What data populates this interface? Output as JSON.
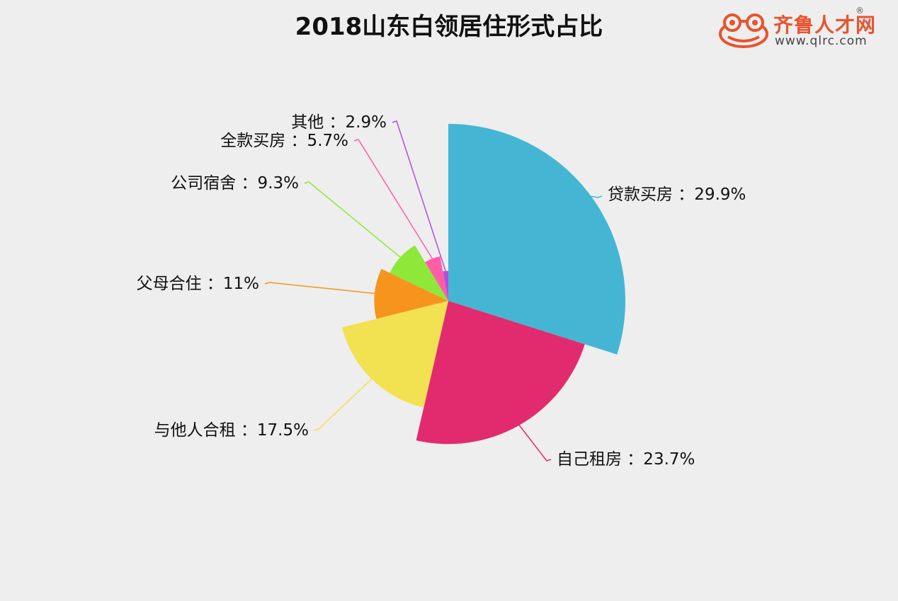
{
  "title": "2018山东白领居住形式占比",
  "logo": {
    "name": "齐鲁人才网",
    "url": "www.qlrc.com",
    "reg": "®",
    "icon": "frog-logo-icon"
  },
  "chart_data": {
    "type": "pie",
    "variant": "rose-by-radius",
    "start_angle_deg": 0,
    "direction": "clockwise-from-top",
    "slices": [
      {
        "label": "贷款买房",
        "value": 29.9,
        "display": "29.9%",
        "color": "#44b6d3"
      },
      {
        "label": "自己租房",
        "value": 23.7,
        "display": "23.7%",
        "color": "#e22b6e"
      },
      {
        "label": "与他人合租",
        "value": 17.5,
        "display": "17.5%",
        "color": "#f2e150"
      },
      {
        "label": "父母合住",
        "value": 11,
        "display": "11%",
        "color": "#f7941d"
      },
      {
        "label": "公司宿舍",
        "value": 9.3,
        "display": "9.3%",
        "color": "#8de83a"
      },
      {
        "label": "全款买房",
        "value": 5.7,
        "display": "5.7%",
        "color": "#ff5ea7"
      },
      {
        "label": "其他",
        "value": 2.9,
        "display": "2.9%",
        "color": "#b050d8"
      }
    ]
  }
}
